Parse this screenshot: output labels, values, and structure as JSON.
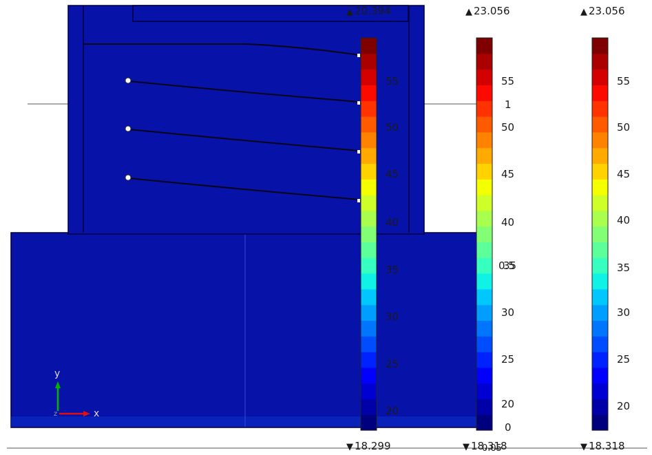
{
  "colors": {
    "model_blue": "#0712a8",
    "model_edge": "#00003a",
    "contour_black": "#05051a"
  },
  "axis_triad": {
    "y_label": "y",
    "x_label": "x",
    "z_label": "z"
  },
  "legends": [
    {
      "max_label": "20.394",
      "min_label": "18.299",
      "ticks": [
        "55",
        "50",
        "45",
        "40",
        "35",
        "30",
        "25",
        "20"
      ]
    },
    {
      "max_label": "23.056",
      "min_label": "18.318",
      "ticks": [
        "55",
        "1",
        "50",
        "45",
        "40",
        "0.5",
        "35",
        "30",
        "25",
        "20",
        "0"
      ],
      "min_overlap_text": "0.05"
    },
    {
      "max_label": "23.056",
      "min_label": "18.318",
      "ticks": [
        "55",
        "50",
        "45",
        "40",
        "35",
        "30",
        "25",
        "20"
      ]
    }
  ],
  "colormap": [
    "#00007f",
    "#0000a8",
    "#0000d2",
    "#0000fc",
    "#0022ff",
    "#004cff",
    "#0076ff",
    "#009fff",
    "#00c8ff",
    "#10f2e6",
    "#36ffc0",
    "#5cff9a",
    "#82ff74",
    "#a8ff4e",
    "#ceff28",
    "#f4ff02",
    "#ffd200",
    "#ffaa00",
    "#ff8200",
    "#ff5a00",
    "#ff3200",
    "#fc0a00",
    "#d40000",
    "#aa0000",
    "#7f0000"
  ]
}
